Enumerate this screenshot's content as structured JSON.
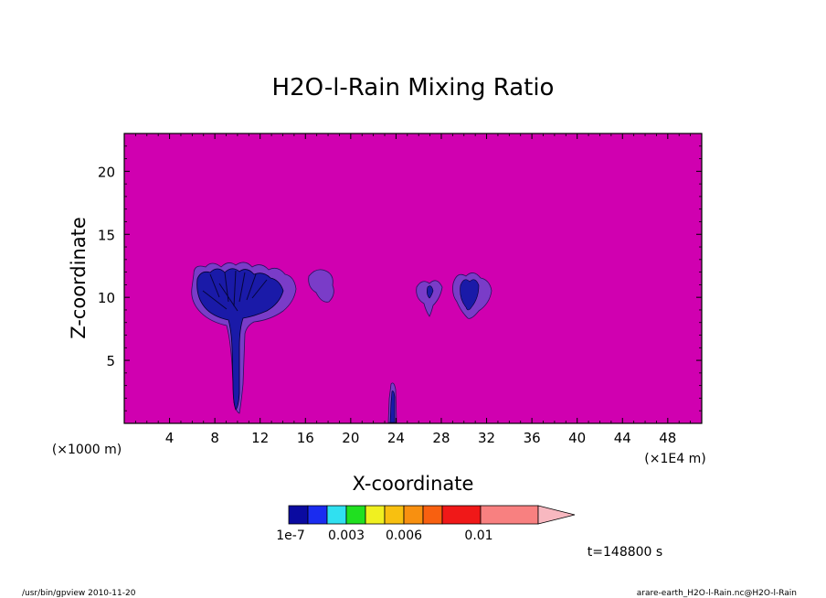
{
  "chart_data": {
    "type": "heatmap",
    "title": "H2O-l-Rain Mixing Ratio",
    "xlabel": "X-coordinate",
    "ylabel": "Z-coordinate",
    "x_unit": "(×1E4 m)",
    "y_unit": "(×1000 m)",
    "xlim": [
      0,
      51
    ],
    "ylim": [
      0,
      23
    ],
    "x_ticks": [
      4,
      8,
      12,
      16,
      20,
      24,
      28,
      32,
      36,
      40,
      44,
      48
    ],
    "y_ticks": [
      5,
      10,
      15,
      20
    ],
    "background_color": "#d000b0",
    "colorbar": {
      "colors": [
        "#0a0aa0",
        "#1a2cf0",
        "#30e0f0",
        "#20e020",
        "#f0f020",
        "#f8c010",
        "#f89010",
        "#f86010",
        "#f01818",
        "#f88080",
        "#f8b8c0"
      ],
      "labels": [
        "1e-7",
        "0.003",
        "0.006",
        "0.01"
      ],
      "extend": "max"
    },
    "time_label": "t=148800 s",
    "features": [
      {
        "name": "storm-cloud-1",
        "x_center": 10,
        "z_base": 8,
        "z_top": 12.5,
        "contains_stem": true
      },
      {
        "name": "cloud-fragment",
        "x_center": 17.5,
        "z_base": 9.5,
        "z_top": 12
      },
      {
        "name": "rain-shaft",
        "x_center": 23.8,
        "z_base": 0,
        "z_top": 3
      },
      {
        "name": "cloud-2",
        "x_center": 27,
        "z_base": 8.5,
        "z_top": 11
      },
      {
        "name": "cloud-3",
        "x_center": 30.5,
        "z_base": 8.5,
        "z_top": 12
      }
    ]
  },
  "footer": {
    "left": "/usr/bin/gpview   2010-11-20",
    "right": "arare-earth_H2O-l-Rain.nc@H2O-l-Rain"
  }
}
